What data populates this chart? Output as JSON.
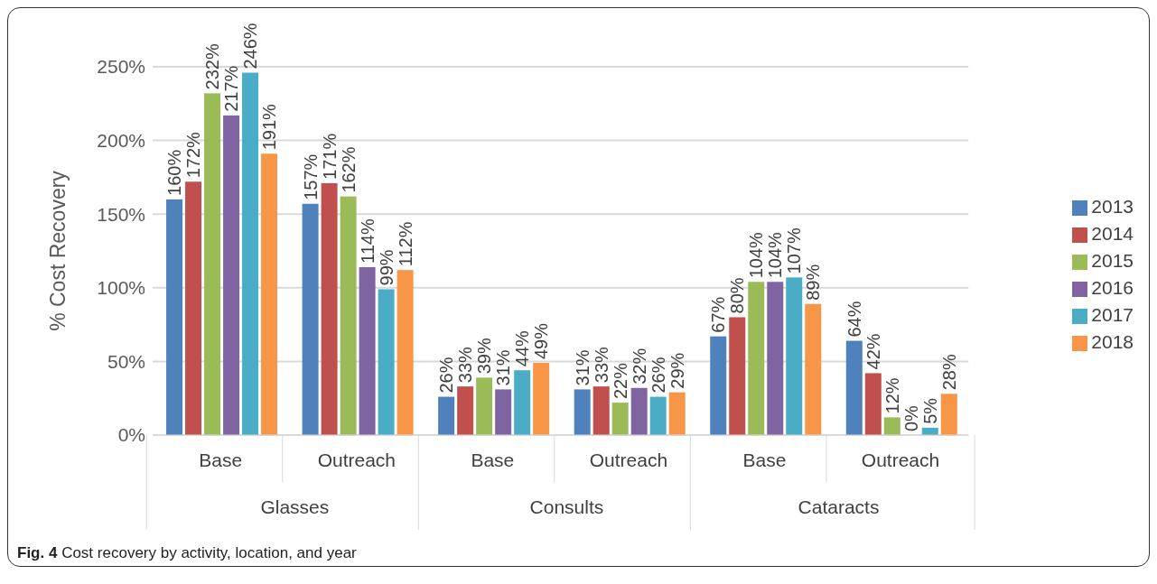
{
  "chart_data": {
    "type": "bar",
    "title": "Fig. 4 Cost recovery by activity, location, and year",
    "ylabel": "% Cost Recovery",
    "categories": [
      "Base",
      "Outreach",
      "Base",
      "Outreach",
      "Base",
      "Outreach"
    ],
    "annotations": [
      "Glasses",
      "Consults",
      "Cataracts"
    ],
    "series": [
      {
        "name": "2013",
        "color": "#4f81bd",
        "values": [
          160,
          157,
          26,
          31,
          67,
          64
        ],
        "value_labels": [
          "160%",
          "157%",
          "26%",
          "31%",
          "67%",
          "64%"
        ]
      },
      {
        "name": "2014",
        "color": "#c0504d",
        "values": [
          172,
          171,
          33,
          33,
          80,
          42
        ],
        "value_labels": [
          "172%",
          "171%",
          "33%",
          "33%",
          "80%",
          "42%"
        ]
      },
      {
        "name": "2015",
        "color": "#9bbb59",
        "values": [
          232,
          162,
          39,
          22,
          104,
          12
        ],
        "value_labels": [
          "232%",
          "162%",
          "39%",
          "22%",
          "104%",
          "12%"
        ]
      },
      {
        "name": "2016",
        "color": "#8064a2",
        "values": [
          217,
          114,
          31,
          32,
          104,
          0
        ],
        "value_labels": [
          "217%",
          "114%",
          "31%",
          "32%",
          "104%",
          "0%"
        ]
      },
      {
        "name": "2017",
        "color": "#4bacc6",
        "values": [
          246,
          99,
          44,
          26,
          107,
          5
        ],
        "value_labels": [
          "246%",
          "99%",
          "44%",
          "26%",
          "107%",
          "5%"
        ]
      },
      {
        "name": "2018",
        "color": "#f79646",
        "values": [
          191,
          112,
          49,
          29,
          89,
          28
        ],
        "value_labels": [
          "191%",
          "112%",
          "49%",
          "29%",
          "89%",
          "28%"
        ]
      }
    ],
    "ylim": [
      0,
      250
    ],
    "yticks": [
      {
        "value": 0,
        "label": "0%"
      },
      {
        "value": 50,
        "label": "50%"
      },
      {
        "value": 100,
        "label": "100%"
      },
      {
        "value": 150,
        "label": "150%"
      },
      {
        "value": 200,
        "label": "200%"
      },
      {
        "value": 250,
        "label": "250%"
      }
    ],
    "grid": "y",
    "legend": "right"
  }
}
